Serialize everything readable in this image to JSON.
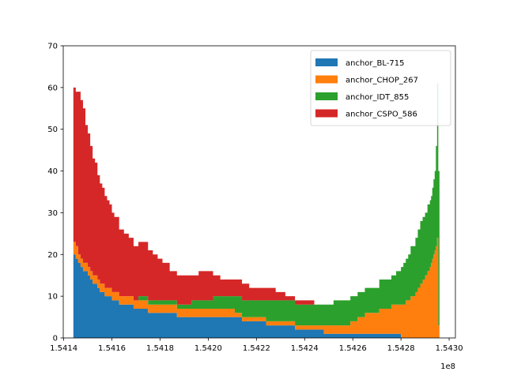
{
  "chart_data": {
    "type": "area",
    "step": true,
    "stacked": true,
    "xlabel": "",
    "ylabel": "",
    "x_offset_label": "1e8",
    "xlim": [
      154139800,
      154302600
    ],
    "ylim": [
      0,
      70
    ],
    "xticks": [
      154140000,
      154160000,
      154180000,
      154200000,
      154220000,
      154240000,
      154260000,
      154280000,
      154300000
    ],
    "xtick_labels": [
      "1.5414",
      "1.5416",
      "1.5418",
      "1.5420",
      "1.5422",
      "1.5424",
      "1.5426",
      "1.5428",
      "1.5430"
    ],
    "yticks": [
      0,
      10,
      20,
      30,
      40,
      50,
      60,
      70
    ],
    "ytick_labels": [
      "0",
      "10",
      "20",
      "30",
      "40",
      "50",
      "60",
      "70"
    ],
    "legend_position": "top-right",
    "x": [
      154144000,
      154144500,
      154145000,
      154146000,
      154147000,
      154148000,
      154149000,
      154150000,
      154151000,
      154152000,
      154153000,
      154154000,
      154155000,
      154156000,
      154157000,
      154158000,
      154159000,
      154160000,
      154161000,
      154162000,
      154163000,
      154165000,
      154167000,
      154169000,
      154171000,
      154173000,
      154175000,
      154177000,
      154179000,
      154181000,
      154184000,
      154187000,
      154190000,
      154193000,
      154196000,
      154199000,
      154202000,
      154205000,
      154208000,
      154211000,
      154214000,
      154217000,
      154220000,
      154224000,
      154228000,
      154232000,
      154236000,
      154240000,
      154244000,
      154248000,
      154252000,
      154256000,
      154259000,
      154262000,
      154265000,
      154268000,
      154271000,
      154274000,
      154276000,
      154278000,
      154280000,
      154281000,
      154282000,
      154283000,
      154284000,
      154285000,
      154286000,
      154287000,
      154288000,
      154289000,
      154290000,
      154291000,
      154292000,
      154292500,
      154293000,
      154293500,
      154294000,
      154294500,
      154295000,
      154295500
    ],
    "series": [
      {
        "name": "anchor_BL-715",
        "color": "#1f77b4",
        "values": [
          20,
          20,
          19,
          18,
          17,
          16,
          16,
          15,
          14,
          13,
          13,
          12,
          11,
          11,
          10,
          10,
          10,
          9,
          9,
          9,
          8,
          8,
          8,
          7,
          7,
          7,
          6,
          6,
          6,
          6,
          6,
          5,
          5,
          5,
          5,
          5,
          5,
          5,
          5,
          5,
          4,
          4,
          4,
          3,
          3,
          3,
          2,
          2,
          2,
          1,
          1,
          1,
          1,
          1,
          1,
          1,
          1,
          1,
          1,
          1,
          0,
          0,
          0,
          0,
          0,
          0,
          0,
          0,
          0,
          0,
          0,
          0,
          0,
          0,
          0,
          0,
          0,
          0,
          0,
          0
        ]
      },
      {
        "name": "anchor_CHOP_267",
        "color": "#ff7f0e",
        "values": [
          3,
          3,
          3,
          2,
          2,
          2,
          2,
          2,
          2,
          2,
          2,
          2,
          2,
          2,
          2,
          2,
          2,
          2,
          2,
          2,
          2,
          2,
          2,
          2,
          2,
          2,
          2,
          2,
          2,
          2,
          2,
          2,
          2,
          2,
          2,
          2,
          2,
          2,
          2,
          1,
          1,
          1,
          1,
          1,
          1,
          1,
          1,
          1,
          1,
          2,
          2,
          2,
          3,
          4,
          5,
          5,
          6,
          6,
          7,
          7,
          8,
          8,
          9,
          9,
          10,
          10,
          11,
          12,
          13,
          14,
          15,
          16,
          17,
          18,
          19,
          20,
          21,
          22,
          24,
          3
        ]
      },
      {
        "name": "anchor_IDT_855",
        "color": "#2ca02c",
        "values": [
          0,
          0,
          0,
          0,
          0,
          0,
          0,
          0,
          0,
          0,
          0,
          0,
          0,
          0,
          0,
          0,
          0,
          0,
          0,
          0,
          0,
          0,
          0,
          0,
          1,
          1,
          1,
          1,
          1,
          1,
          1,
          1,
          1,
          2,
          2,
          2,
          3,
          3,
          3,
          4,
          4,
          4,
          4,
          5,
          5,
          5,
          5,
          5,
          5,
          5,
          6,
          6,
          6,
          6,
          6,
          6,
          7,
          7,
          7,
          8,
          9,
          10,
          10,
          11,
          12,
          12,
          13,
          14,
          15,
          15,
          15,
          16,
          16,
          16,
          17,
          18,
          19,
          24,
          37,
          37
        ]
      },
      {
        "name": "anchor_CSPO_586",
        "color": "#d62728",
        "values": [
          37,
          37,
          37,
          39,
          38,
          37,
          33,
          32,
          30,
          28,
          27,
          25,
          24,
          23,
          22,
          21,
          20,
          19,
          18,
          18,
          16,
          15,
          14,
          13,
          13,
          13,
          12,
          11,
          10,
          9,
          7,
          7,
          7,
          6,
          7,
          7,
          5,
          4,
          4,
          4,
          4,
          3,
          3,
          3,
          2,
          1,
          1,
          1,
          0,
          0,
          0,
          0,
          0,
          0,
          0,
          0,
          0,
          0,
          0,
          0,
          0,
          0,
          0,
          0,
          0,
          0,
          0,
          0,
          0,
          0,
          0,
          0,
          0,
          0,
          0,
          0,
          0,
          0,
          0,
          0
        ]
      }
    ]
  }
}
